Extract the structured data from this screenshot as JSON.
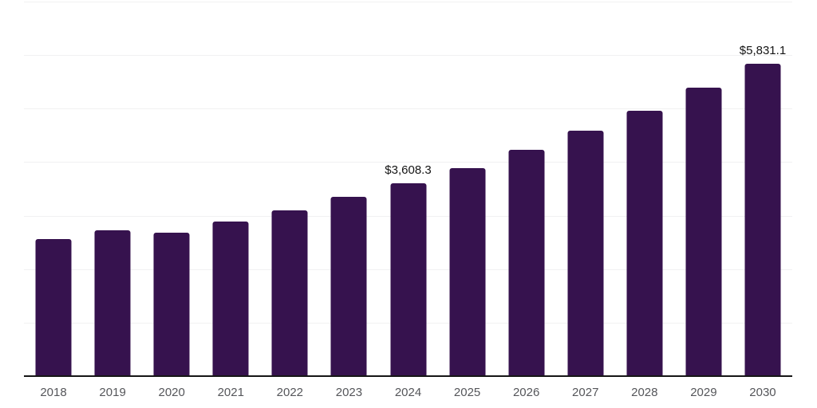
{
  "chart": {
    "background_color": "#ffffff",
    "bar_color": "#36124e",
    "grid_color": "#f1f1f2",
    "axis_line_color": "#161616",
    "tick_label_color": "#55565a",
    "data_label_color": "#141414"
  },
  "chart_data": {
    "type": "bar",
    "title": "",
    "xlabel": "",
    "ylabel": "",
    "categories": [
      "2018",
      "2019",
      "2020",
      "2021",
      "2022",
      "2023",
      "2024",
      "2025",
      "2026",
      "2027",
      "2028",
      "2029",
      "2030"
    ],
    "values": [
      2555,
      2720,
      2680,
      2895,
      3095,
      3355,
      3608.3,
      3885,
      4230,
      4585,
      4955,
      5385,
      5831.1
    ],
    "ylim": [
      0,
      7000
    ],
    "grid": true,
    "grid_interval": 1000,
    "y_axis_labels_visible": false,
    "legend": false,
    "data_labels": [
      {
        "category": "2024",
        "text": "$3,608.3"
      },
      {
        "category": "2030",
        "text": "$5,831.1"
      }
    ]
  }
}
